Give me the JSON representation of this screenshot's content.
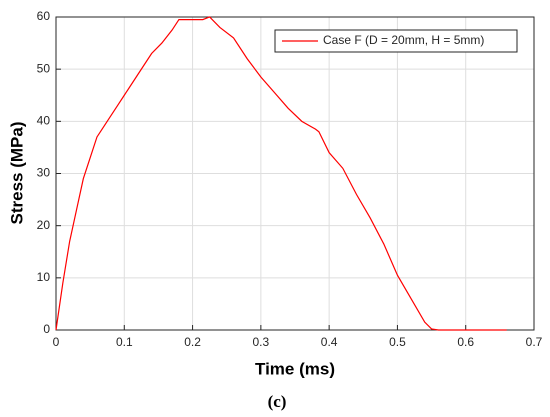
{
  "chart_data": {
    "type": "line",
    "x_label": "Time (ms)",
    "y_label": "Stress (MPa)",
    "caption": "(c)",
    "x": [
      0,
      0.01,
      0.02,
      0.03,
      0.04,
      0.05,
      0.06,
      0.075,
      0.09,
      0.1,
      0.12,
      0.14,
      0.155,
      0.17,
      0.18,
      0.2,
      0.215,
      0.225,
      0.24,
      0.26,
      0.28,
      0.3,
      0.32,
      0.34,
      0.36,
      0.38,
      0.385,
      0.4,
      0.42,
      0.44,
      0.46,
      0.48,
      0.5,
      0.52,
      0.54,
      0.55,
      0.56,
      0.66
    ],
    "series": [
      {
        "name": "Case F (D = 20mm, H = 5mm)",
        "color": "#ff0000",
        "values": [
          0,
          9,
          17,
          23,
          29,
          33,
          37,
          40,
          43,
          45,
          49,
          53,
          55,
          57.5,
          59.5,
          59.5,
          59.5,
          60,
          58,
          56,
          52,
          48.5,
          45.5,
          42.5,
          40,
          38.5,
          38,
          34,
          31,
          26,
          21.5,
          16.5,
          10.5,
          6,
          1.5,
          0.2,
          0,
          0
        ]
      }
    ],
    "xlim": [
      0,
      0.7
    ],
    "xticks": [
      0,
      0.1,
      0.2,
      0.3,
      0.4,
      0.5,
      0.6,
      0.7
    ],
    "ylim": [
      0,
      60
    ],
    "yticks": [
      0,
      10,
      20,
      30,
      40,
      50,
      60
    ],
    "grid": true,
    "legend": "upper-right"
  }
}
